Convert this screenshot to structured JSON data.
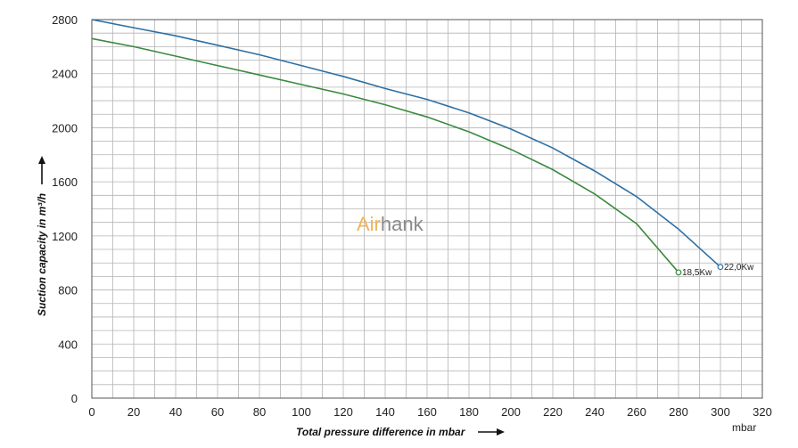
{
  "chart_data": {
    "type": "line",
    "xlabel": "Total pressure difference in mbar",
    "ylabel": "Suction capacity in m³/h",
    "x_unit": "mbar",
    "xlim": [
      0,
      320
    ],
    "ylim": [
      0,
      2800
    ],
    "x_ticks": [
      0,
      20,
      40,
      60,
      80,
      100,
      120,
      140,
      160,
      180,
      200,
      220,
      240,
      260,
      280,
      300,
      320
    ],
    "y_ticks": [
      0,
      400,
      800,
      1200,
      1600,
      2000,
      2400,
      2800
    ],
    "grid": true,
    "series": [
      {
        "name": "22,0Kw",
        "color": "#2e6fa3",
        "x": [
          0,
          20,
          40,
          60,
          80,
          100,
          120,
          140,
          160,
          180,
          200,
          220,
          240,
          260,
          280,
          300
        ],
        "y": [
          2800,
          2740,
          2680,
          2610,
          2540,
          2460,
          2380,
          2290,
          2210,
          2110,
          1990,
          1850,
          1680,
          1490,
          1250,
          970
        ]
      },
      {
        "name": "18,5Kw",
        "color": "#3a8a3e",
        "x": [
          0,
          20,
          40,
          60,
          80,
          100,
          120,
          140,
          160,
          180,
          200,
          220,
          240,
          260,
          280
        ],
        "y": [
          2660,
          2600,
          2530,
          2460,
          2390,
          2320,
          2250,
          2170,
          2080,
          1970,
          1840,
          1690,
          1510,
          1290,
          930
        ]
      }
    ]
  },
  "watermark": {
    "part1": "Air",
    "part2": "hank",
    "color1": "#f0b35a",
    "color2": "#8a8a8a"
  },
  "colors": {
    "grid": "#b4b4b4",
    "frame": "#555555"
  }
}
